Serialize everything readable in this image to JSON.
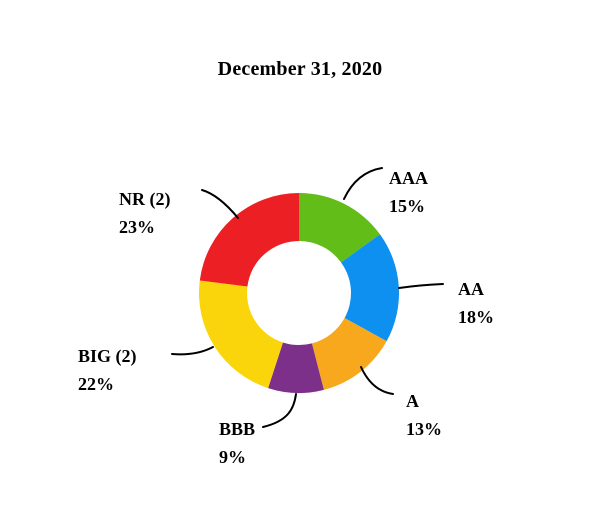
{
  "title": "December 31, 2020",
  "chart_data": {
    "type": "pie",
    "subtype": "donut",
    "title": "December 31, 2020",
    "inner_radius_ratio": 0.52,
    "start_angle_deg": 0,
    "direction": "clockwise",
    "background": "#ffffff",
    "leader_line_color": "#000000",
    "label_color": "#000000",
    "segments": [
      {
        "label": "AAA",
        "value": 15,
        "percent_label": "15%",
        "color": "#62BD19"
      },
      {
        "label": "AA",
        "value": 18,
        "percent_label": "18%",
        "color": "#0E90F0"
      },
      {
        "label": "A",
        "value": 13,
        "percent_label": "13%",
        "color": "#F7A81C"
      },
      {
        "label": "BBB",
        "value": 9,
        "percent_label": "9%",
        "color": "#7D3089"
      },
      {
        "label": "BIG (2)",
        "value": 22,
        "percent_label": "22%",
        "color": "#FBD50B"
      },
      {
        "label": "NR (2)",
        "value": 23,
        "percent_label": "23%",
        "color": "#EC2024"
      }
    ]
  }
}
